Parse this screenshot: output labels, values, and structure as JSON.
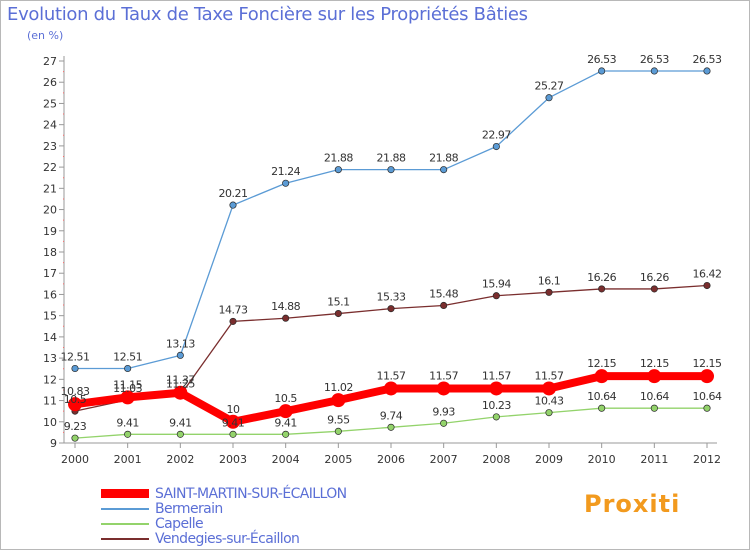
{
  "title": "Evolution du Taux de Taxe Foncière sur les Propriétés Bâties",
  "subtitle": "(en %)",
  "brand": "Proxiti",
  "chart_data": {
    "type": "line",
    "title": "Evolution du Taux de Taxe Foncière sur les Propriétés Bâties",
    "ylabel": "(en %)",
    "xlabel": "",
    "categories": [
      "2000",
      "2001",
      "2002",
      "2003",
      "2004",
      "2005",
      "2006",
      "2007",
      "2008",
      "2009",
      "2010",
      "2011",
      "2012"
    ],
    "ylim": [
      9,
      27
    ],
    "yticks": [
      "9",
      "10",
      "11",
      "12",
      "13",
      "14",
      "15",
      "16",
      "17",
      "18",
      "19",
      "20",
      "21",
      "22",
      "23",
      "24",
      "25",
      "26",
      "27"
    ],
    "grid": false,
    "legend_position": "bottom-left",
    "series": [
      {
        "name": "SAINT-MARTIN-SUR-ÉCAILLON",
        "color": "#ff0000",
        "bold": true,
        "values": [
          10.83,
          11.15,
          11.37,
          10,
          10.5,
          11.02,
          11.57,
          11.57,
          11.57,
          11.57,
          12.15,
          12.15,
          12.15
        ],
        "labels": [
          "10.83",
          "11.15",
          "11.37",
          "10",
          "10.5",
          "11.02",
          "11.57",
          "11.57",
          "11.57",
          "11.57",
          "12.15",
          "12.15",
          "12.15"
        ]
      },
      {
        "name": "Bermerain",
        "color": "#5b9bd5",
        "values": [
          12.51,
          12.51,
          13.13,
          20.21,
          21.24,
          21.88,
          21.88,
          21.88,
          22.97,
          25.27,
          26.53,
          26.53,
          26.53
        ],
        "labels": [
          "12.51",
          "12.51",
          "13.13",
          "20.21",
          "21.24",
          "21.88",
          "21.88",
          "21.88",
          "22.97",
          "25.27",
          "26.53",
          "26.53",
          "26.53"
        ]
      },
      {
        "name": "Capelle",
        "color": "#93d36b",
        "values": [
          9.23,
          9.41,
          9.41,
          9.41,
          9.41,
          9.55,
          9.74,
          9.93,
          10.23,
          10.43,
          10.64,
          10.64,
          10.64
        ],
        "labels": [
          "9.23",
          "9.41",
          "9.41",
          "9.41",
          "9.41",
          "9.55",
          "9.74",
          "9.93",
          "10.23",
          "10.43",
          "10.64",
          "10.64",
          "10.64"
        ]
      },
      {
        "name": "Vendegies-sur-Écaillon",
        "color": "#7a2e2e",
        "values": [
          10.5,
          11.03,
          11.25,
          14.73,
          14.88,
          15.1,
          15.33,
          15.48,
          15.94,
          16.1,
          16.26,
          16.26,
          16.42
        ],
        "labels": [
          "10.5",
          "11.03",
          "11.25",
          "14.73",
          "14.88",
          "15.1",
          "15.33",
          "15.48",
          "15.94",
          "16.1",
          "16.26",
          "16.26",
          "16.42"
        ]
      }
    ]
  }
}
